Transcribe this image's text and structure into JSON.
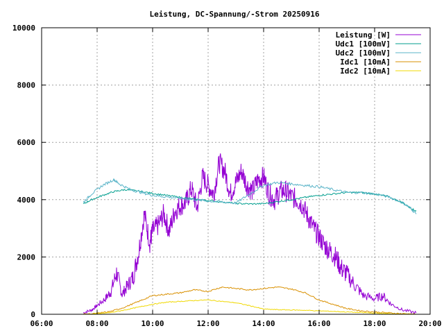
{
  "chart_data": {
    "type": "line",
    "title": "Leistung, DC-Spannung/-Strom 20250916",
    "xlabel": "",
    "ylabel": "",
    "xlim": [
      6,
      20
    ],
    "ylim": [
      0,
      10000
    ],
    "grid": true,
    "legend_position": "top-right",
    "x_ticks": [
      {
        "value": 6,
        "label": "06:00"
      },
      {
        "value": 8,
        "label": "08:00"
      },
      {
        "value": 10,
        "label": "10:00"
      },
      {
        "value": 12,
        "label": "12:00"
      },
      {
        "value": 14,
        "label": "14:00"
      },
      {
        "value": 16,
        "label": "16:00"
      },
      {
        "value": 18,
        "label": "18:00"
      },
      {
        "value": 20,
        "label": "20:00"
      }
    ],
    "y_ticks": [
      {
        "value": 0,
        "label": "0"
      },
      {
        "value": 2000,
        "label": "2000"
      },
      {
        "value": 4000,
        "label": "4000"
      },
      {
        "value": 6000,
        "label": "6000"
      },
      {
        "value": 8000,
        "label": "8000"
      },
      {
        "value": 10000,
        "label": "10000"
      }
    ],
    "series": [
      {
        "name": "Leistung [W]",
        "color": "#9400d3",
        "x": [
          7.5,
          7.8,
          8.0,
          8.3,
          8.5,
          8.7,
          8.9,
          9.1,
          9.3,
          9.5,
          9.7,
          9.9,
          10.0,
          10.2,
          10.4,
          10.6,
          10.8,
          11.0,
          11.2,
          11.4,
          11.6,
          11.8,
          12.0,
          12.2,
          12.4,
          12.6,
          12.8,
          13.0,
          13.2,
          13.4,
          13.6,
          13.8,
          14.0,
          14.2,
          14.4,
          14.6,
          14.8,
          15.0,
          15.2,
          15.4,
          15.6,
          15.8,
          16.0,
          16.2,
          16.4,
          16.6,
          16.8,
          17.0,
          17.3,
          17.6,
          18.0,
          18.3,
          18.6,
          19.0,
          19.5
        ],
        "y": [
          50,
          150,
          300,
          550,
          800,
          1450,
          700,
          1000,
          1300,
          2200,
          3500,
          2500,
          2900,
          3100,
          3500,
          2900,
          3600,
          3800,
          3900,
          4400,
          3700,
          4800,
          4500,
          4200,
          5300,
          5000,
          4200,
          4600,
          5000,
          4500,
          4300,
          4700,
          4800,
          4200,
          4000,
          4300,
          4300,
          4100,
          4000,
          3800,
          3400,
          3000,
          2700,
          2400,
          2200,
          2000,
          1600,
          1400,
          1000,
          650,
          550,
          650,
          350,
          150,
          50
        ]
      },
      {
        "name": "Udc1 [100mV]",
        "color": "#009e8e",
        "x": [
          7.5,
          7.8,
          8.2,
          8.6,
          9.0,
          9.5,
          10.0,
          10.5,
          11.0,
          11.5,
          12.0,
          12.5,
          13.0,
          13.5,
          14.0,
          14.5,
          15.0,
          15.5,
          16.0,
          16.5,
          17.0,
          17.5,
          18.0,
          18.5,
          19.0,
          19.3,
          19.5
        ],
        "y": [
          3850,
          4000,
          4150,
          4280,
          4350,
          4300,
          4220,
          4150,
          4080,
          4020,
          3970,
          3920,
          3870,
          3850,
          3860,
          3930,
          4000,
          4080,
          4150,
          4200,
          4250,
          4250,
          4200,
          4100,
          3900,
          3700,
          3600
        ]
      },
      {
        "name": "Udc2 [100mV]",
        "color": "#5ab4c8",
        "x": [
          7.5,
          7.8,
          8.2,
          8.6,
          8.8,
          9.2,
          9.6,
          10.0,
          10.5,
          11.0,
          11.5,
          12.0,
          12.5,
          13.0,
          13.5,
          14.0,
          14.5,
          15.0,
          15.5,
          16.0,
          16.5,
          17.0,
          17.5,
          18.0,
          18.5,
          19.0,
          19.3,
          19.5
        ],
        "y": [
          3900,
          4200,
          4500,
          4700,
          4550,
          4350,
          4250,
          4150,
          4100,
          4050,
          4000,
          3950,
          3920,
          3880,
          4200,
          4500,
          4600,
          4550,
          4500,
          4450,
          4350,
          4250,
          4250,
          4200,
          4100,
          3900,
          3700,
          3500
        ]
      },
      {
        "name": "Idc1 [10mA]",
        "color": "#d99000",
        "x": [
          7.5,
          8.0,
          8.5,
          9.0,
          9.5,
          10.0,
          10.5,
          11.0,
          11.5,
          12.0,
          12.5,
          13.0,
          13.5,
          14.0,
          14.5,
          15.0,
          15.5,
          16.0,
          16.5,
          17.0,
          17.5,
          18.0,
          18.5,
          19.0,
          19.5
        ],
        "y": [
          0,
          30,
          100,
          250,
          450,
          650,
          700,
          750,
          850,
          800,
          950,
          900,
          850,
          900,
          950,
          880,
          750,
          500,
          350,
          200,
          120,
          80,
          50,
          20,
          0
        ]
      },
      {
        "name": "Idc2 [10mA]",
        "color": "#f0d800",
        "x": [
          7.5,
          8.0,
          8.5,
          9.0,
          9.5,
          10.0,
          10.5,
          11.0,
          11.5,
          12.0,
          12.5,
          13.0,
          13.5,
          14.0,
          14.5,
          15.0,
          15.5,
          16.0,
          16.5,
          17.0,
          17.5,
          18.0,
          18.5,
          19.0,
          19.5
        ],
        "y": [
          0,
          20,
          60,
          150,
          250,
          350,
          420,
          450,
          480,
          500,
          450,
          400,
          300,
          180,
          160,
          150,
          140,
          120,
          100,
          80,
          60,
          40,
          20,
          10,
          0
        ]
      }
    ]
  }
}
